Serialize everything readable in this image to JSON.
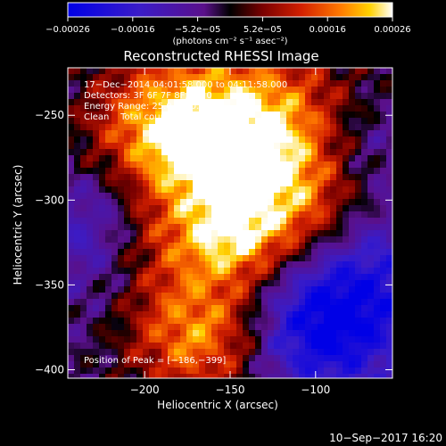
{
  "chart_data": {
    "type": "heatmap",
    "title": "Reconstructed RHESSI Image",
    "xlabel": "Heliocentric X (arcsec)",
    "ylabel": "Heliocentric Y (arcsec)",
    "xlim": [
      -245,
      -55
    ],
    "ylim": [
      -405,
      -222
    ],
    "x_ticks": [
      {
        "value": -200,
        "label": "−200"
      },
      {
        "value": -150,
        "label": "−150"
      },
      {
        "value": -100,
        "label": "−100"
      }
    ],
    "y_ticks": [
      {
        "value": -250,
        "label": "−250"
      },
      {
        "value": -300,
        "label": "−300"
      },
      {
        "value": -350,
        "label": "−350"
      },
      {
        "value": -400,
        "label": "−400"
      }
    ],
    "colorbar": {
      "min": -0.00026,
      "max": 0.00026,
      "tick_labels": [
        "−0.00026",
        "−0.00016",
        "−5.2e−05",
        "5.2e−05",
        "0.00016",
        "0.00026"
      ],
      "unit_label": "(photons cm⁻² s⁻¹ asec⁻²)"
    },
    "annotations": [
      "17−Dec−2014 04:01:58.000 to 04:11:58.000",
      "Detectors: 3F 6F 7F 8F, Att 0",
      "Energy Range: 25.0 − 50.0 keV",
      "Clean    Total counts: 5.57E+03"
    ],
    "peak_label": "Position of Peak = [−186,−399]",
    "peak": [
      -186,
      -399
    ],
    "timestamp": "10−Sep−2017 16:20"
  }
}
